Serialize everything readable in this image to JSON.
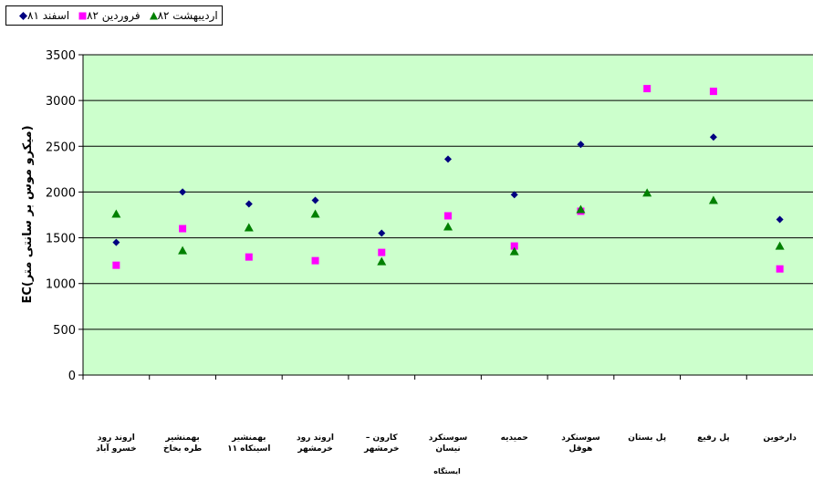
{
  "chart_data": {
    "type": "scatter",
    "title": "",
    "xlabel": "ایستگاه",
    "ylabel": "EC(میکرو موس بر سانتی متر)",
    "ylim": [
      0,
      3500
    ],
    "yticks": [
      0,
      500,
      1000,
      1500,
      2000,
      2500,
      3000,
      3500
    ],
    "grid": true,
    "background": "#ccffcc",
    "legend_position": "top-left",
    "categories": [
      [
        "اروند رود",
        "خسرو آباد"
      ],
      [
        "بهمنشیر",
        "طره بخاخ"
      ],
      [
        "بهمنشیر",
        "اسینکاه ۱۱"
      ],
      [
        "اروند رود",
        "خرمشهر"
      ],
      [
        "کارون –",
        "خرمشهر"
      ],
      [
        "سوسنکرد",
        "نیسان"
      ],
      [
        "حمیدیه"
      ],
      [
        "سوسنکرد",
        "هوفل"
      ],
      [
        "پل بستان"
      ],
      [
        "پل رفیع"
      ],
      [
        "دارخوین"
      ]
    ],
    "series": [
      {
        "name": "اسفند ۸۱",
        "marker": "diamond",
        "color": "#000080",
        "values": [
          1450,
          2000,
          1870,
          1910,
          1550,
          2360,
          1970,
          2520,
          null,
          2600,
          1700
        ]
      },
      {
        "name": "فروردین ۸۲",
        "marker": "square",
        "color": "#ff00ff",
        "values": [
          1200,
          1600,
          1290,
          1250,
          1340,
          1740,
          1410,
          1790,
          3130,
          3100,
          1160
        ]
      },
      {
        "name": "اردیبهشت ۸۲",
        "marker": "triangle",
        "color": "#008000",
        "values": [
          1760,
          1360,
          1610,
          1760,
          1240,
          1620,
          1350,
          1810,
          1990,
          1910,
          1410
        ]
      }
    ]
  }
}
